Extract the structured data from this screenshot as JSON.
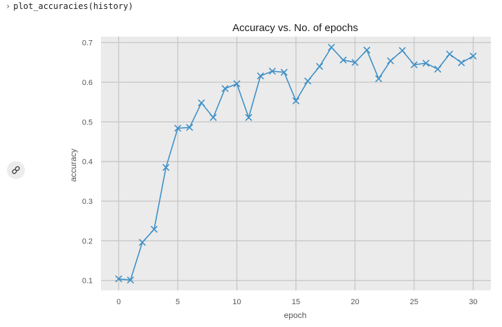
{
  "cell": {
    "prompt_icon": "chevron-right-icon",
    "code": "plot_accuracies(history)"
  },
  "output": {
    "link_icon": "link-icon"
  },
  "chart_data": {
    "type": "line",
    "title": "Accuracy vs. No. of epochs",
    "xlabel": "epoch",
    "ylabel": "accuracy",
    "marker": "x",
    "grid": true,
    "xlim": [
      -1.5,
      31.5
    ],
    "ylim": [
      0.075,
      0.715
    ],
    "xticks": [
      0,
      5,
      10,
      15,
      20,
      25,
      30
    ],
    "yticks": [
      0.1,
      0.2,
      0.3,
      0.4,
      0.5,
      0.6,
      0.7
    ],
    "ytick_labels": [
      "0.1",
      "0.2",
      "0.3",
      "0.4",
      "0.5",
      "0.6",
      "0.7"
    ],
    "line_color": "#3d8fc7",
    "background": "#ebebeb",
    "x": [
      0,
      1,
      2,
      3,
      4,
      5,
      6,
      7,
      8,
      9,
      10,
      11,
      12,
      13,
      14,
      15,
      16,
      17,
      18,
      19,
      20,
      21,
      22,
      23,
      24,
      25,
      26,
      27,
      28,
      29,
      30
    ],
    "values": [
      0.104,
      0.101,
      0.196,
      0.229,
      0.385,
      0.484,
      0.486,
      0.548,
      0.511,
      0.584,
      0.596,
      0.511,
      0.616,
      0.628,
      0.625,
      0.553,
      0.603,
      0.64,
      0.688,
      0.656,
      0.65,
      0.681,
      0.609,
      0.654,
      0.68,
      0.644,
      0.648,
      0.633,
      0.671,
      0.649,
      0.666
    ]
  }
}
